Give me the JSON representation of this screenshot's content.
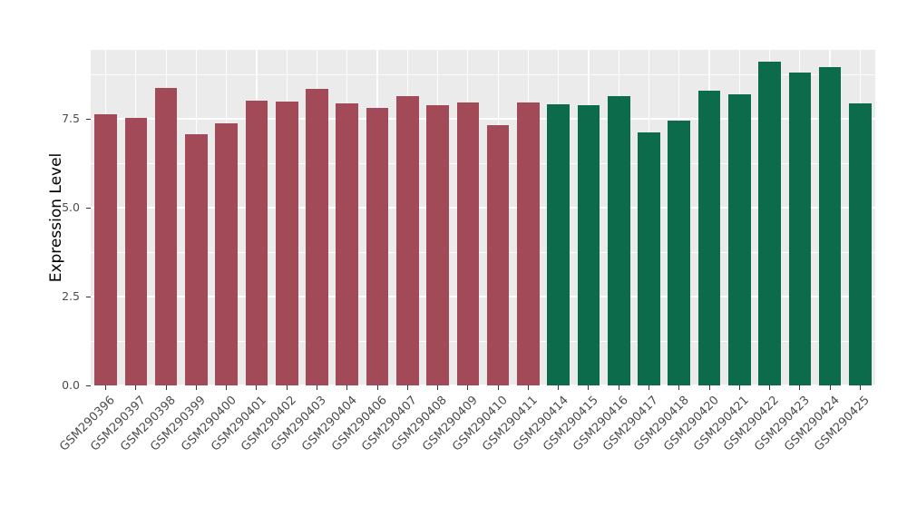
{
  "chart_data": {
    "type": "bar",
    "title": "",
    "xlabel": "",
    "ylabel": "Expression Level",
    "ylim": [
      0,
      9.44
    ],
    "grid": true,
    "legend": "none",
    "yticks": [
      {
        "value": 0.0,
        "label": "0.0"
      },
      {
        "value": 2.5,
        "label": "2.5"
      },
      {
        "value": 5.0,
        "label": "5.0"
      },
      {
        "value": 7.5,
        "label": "7.5"
      }
    ],
    "yticks_minor": [
      1.25,
      3.75,
      6.25,
      8.75
    ],
    "categories": [
      "GSM290396",
      "GSM290397",
      "GSM290398",
      "GSM290399",
      "GSM290400",
      "GSM290401",
      "GSM290402",
      "GSM290403",
      "GSM290404",
      "GSM290406",
      "GSM290407",
      "GSM290408",
      "GSM290409",
      "GSM290410",
      "GSM290411",
      "GSM290414",
      "GSM290415",
      "GSM290416",
      "GSM290417",
      "GSM290418",
      "GSM290420",
      "GSM290421",
      "GSM290422",
      "GSM290423",
      "GSM290424",
      "GSM290425"
    ],
    "values": [
      7.62,
      7.52,
      8.38,
      7.08,
      7.38,
      8.02,
      7.98,
      8.35,
      7.93,
      7.8,
      8.15,
      7.88,
      7.95,
      7.33,
      7.97,
      7.9,
      7.88,
      8.15,
      7.13,
      7.45,
      8.28,
      8.2,
      9.1,
      8.8,
      8.95,
      7.93
    ],
    "groups": [
      {
        "name": "group-1",
        "color": "#A34A58",
        "count": 15
      },
      {
        "name": "group-2",
        "color": "#0B6B4B",
        "count": 11
      }
    ],
    "panel_background": "#EBEBEB",
    "gridline_color": "#FFFFFF"
  }
}
